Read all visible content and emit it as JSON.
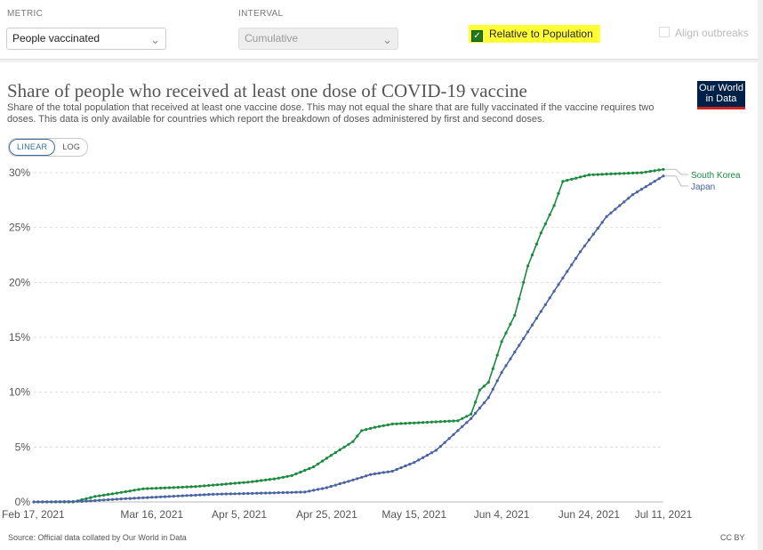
{
  "controls": {
    "metric_label": "METRIC",
    "metric_value": "People vaccinated",
    "interval_label": "INTERVAL",
    "interval_value": "Cumulative",
    "relative_label": "Relative to Population",
    "relative_checked": true,
    "align_label": "Align outbreaks",
    "highlight_color": "#ffff33"
  },
  "header": {
    "title": "Share of people who received at least one dose of COVID-19 vaccine",
    "subtitle": "Share of the total population that received at least one vaccine dose. This may not equal the share that are fully vaccinated if the vaccine requires two doses. This data is only available for countries which report the breakdown of doses administered by first and second doses.",
    "logo_line1": "Our World",
    "logo_line2": "in Data"
  },
  "scale_toggle": {
    "linear": "LINEAR",
    "log": "LOG",
    "active": "linear"
  },
  "footer": {
    "source": "Source: Official data collated by Our World in Data",
    "license": "CC BY"
  },
  "chart_data": {
    "type": "line",
    "title": "Share of people who received at least one dose of COVID-19 vaccine",
    "xlabel": "",
    "ylabel": "",
    "x_range": [
      "2021-02-17",
      "2021-07-11"
    ],
    "ylim": [
      0,
      30
    ],
    "y_ticks": [
      0,
      5,
      10,
      15,
      20,
      25,
      30
    ],
    "y_tick_labels": [
      "0%",
      "5%",
      "10%",
      "15%",
      "20%",
      "25%",
      "30%"
    ],
    "x_ticks": [
      "2021-02-17",
      "2021-03-16",
      "2021-04-05",
      "2021-04-25",
      "2021-05-15",
      "2021-06-04",
      "2021-06-24",
      "2021-07-11"
    ],
    "x_tick_labels": [
      "Feb 17, 2021",
      "Mar 16, 2021",
      "Apr 5, 2021",
      "Apr 25, 2021",
      "May 15, 2021",
      "Jun 4, 2021",
      "Jun 24, 2021",
      "Jul 11, 2021"
    ],
    "grid": "horizontal dashed",
    "scale": "linear",
    "series": [
      {
        "name": "South Korea",
        "color": "#1a8a3e",
        "points": [
          [
            "2021-02-17",
            0
          ],
          [
            "2021-02-26",
            0
          ],
          [
            "2021-03-03",
            0.5
          ],
          [
            "2021-03-08",
            0.8
          ],
          [
            "2021-03-14",
            1.2
          ],
          [
            "2021-03-20",
            1.3
          ],
          [
            "2021-03-26",
            1.4
          ],
          [
            "2021-04-01",
            1.6
          ],
          [
            "2021-04-07",
            1.8
          ],
          [
            "2021-04-13",
            2.1
          ],
          [
            "2021-04-17",
            2.4
          ],
          [
            "2021-04-22",
            3.2
          ],
          [
            "2021-04-27",
            4.5
          ],
          [
            "2021-05-01",
            5.5
          ],
          [
            "2021-05-03",
            6.5
          ],
          [
            "2021-05-06",
            6.8
          ],
          [
            "2021-05-10",
            7.1
          ],
          [
            "2021-05-15",
            7.2
          ],
          [
            "2021-05-20",
            7.3
          ],
          [
            "2021-05-25",
            7.4
          ],
          [
            "2021-05-28",
            8.0
          ],
          [
            "2021-05-30",
            10.2
          ],
          [
            "2021-06-01",
            10.9
          ],
          [
            "2021-06-04",
            14.6
          ],
          [
            "2021-06-07",
            17.0
          ],
          [
            "2021-06-10",
            21.5
          ],
          [
            "2021-06-13",
            24.5
          ],
          [
            "2021-06-16",
            27.0
          ],
          [
            "2021-06-18",
            29.2
          ],
          [
            "2021-06-24",
            29.8
          ],
          [
            "2021-06-30",
            29.9
          ],
          [
            "2021-07-06",
            30.0
          ],
          [
            "2021-07-11",
            30.3
          ]
        ]
      },
      {
        "name": "Japan",
        "color": "#4a63a0",
        "points": [
          [
            "2021-02-17",
            0
          ],
          [
            "2021-02-28",
            0.05
          ],
          [
            "2021-03-10",
            0.3
          ],
          [
            "2021-03-20",
            0.5
          ],
          [
            "2021-03-30",
            0.7
          ],
          [
            "2021-04-10",
            0.8
          ],
          [
            "2021-04-20",
            0.9
          ],
          [
            "2021-04-25",
            1.3
          ],
          [
            "2021-05-01",
            2.0
          ],
          [
            "2021-05-05",
            2.5
          ],
          [
            "2021-05-10",
            2.8
          ],
          [
            "2021-05-15",
            3.6
          ],
          [
            "2021-05-20",
            4.7
          ],
          [
            "2021-05-25",
            6.5
          ],
          [
            "2021-05-28",
            7.6
          ],
          [
            "2021-06-01",
            9.5
          ],
          [
            "2021-06-04",
            11.8
          ],
          [
            "2021-06-10",
            15.5
          ],
          [
            "2021-06-16",
            19.2
          ],
          [
            "2021-06-22",
            22.8
          ],
          [
            "2021-06-28",
            26.0
          ],
          [
            "2021-07-04",
            28.0
          ],
          [
            "2021-07-11",
            29.7
          ]
        ]
      }
    ]
  }
}
